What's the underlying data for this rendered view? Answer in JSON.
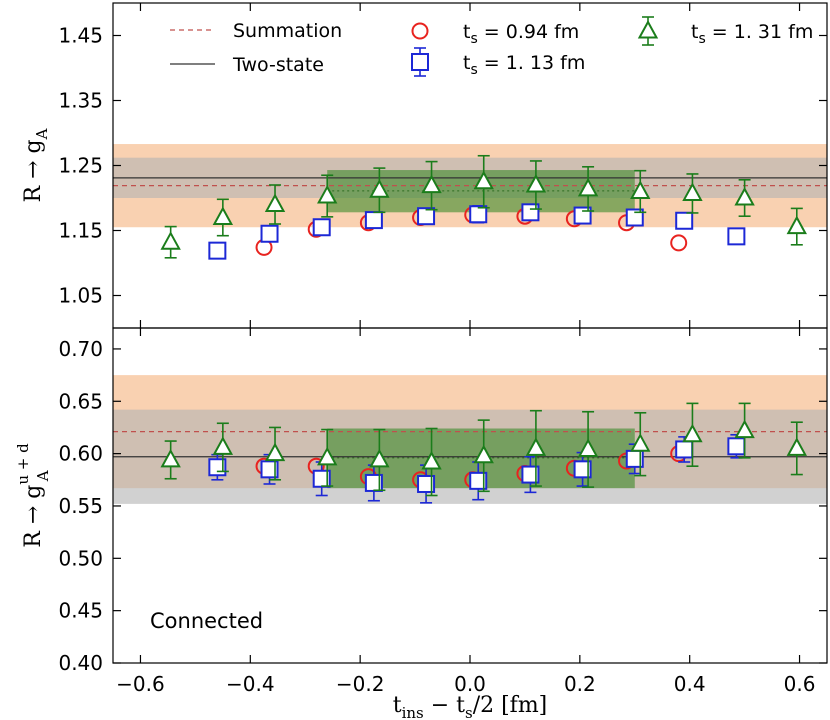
{
  "chart_data": [
    {
      "type": "scatter",
      "panel": "top",
      "ylabel": {
        "text": "R → g",
        "sub": "A",
        "sup": ""
      },
      "xlim": [
        -0.65,
        0.65
      ],
      "ylim": [
        1.0,
        1.5
      ],
      "yticks": [
        1.05,
        1.15,
        1.25,
        1.35,
        1.45
      ],
      "ytick_labels": [
        "1.05",
        "1.15",
        "1.25",
        "1.35",
        "1.45"
      ],
      "bands": [
        {
          "name": "Summation",
          "center": 1.219,
          "lower": 1.155,
          "upper": 1.283,
          "color": "#f7c197",
          "line_color": "#c0504d",
          "line_style": "dashed"
        },
        {
          "name": "Two-state",
          "center": 1.231,
          "lower": 1.2,
          "upper": 1.262,
          "color": "#b3b3b3",
          "line_color": "#333333",
          "line_style": "solid"
        }
      ],
      "fit_region": {
        "x": [
          -0.26,
          0.3
        ],
        "lower": 1.178,
        "upper": 1.243,
        "center": 1.211,
        "color": "#3a8a2a"
      },
      "series": [
        {
          "name": "ts = 0.94 fm",
          "marker": "circle",
          "color": "#e8231f",
          "x": [
            -0.375,
            -0.28,
            -0.185,
            -0.09,
            0.005,
            0.1,
            0.19,
            0.285,
            0.38
          ],
          "y": [
            1.124,
            1.152,
            1.162,
            1.17,
            1.174,
            1.172,
            1.168,
            1.162,
            1.131
          ],
          "err": [
            0.005,
            0.005,
            0.005,
            0.006,
            0.006,
            0.006,
            0.006,
            0.006,
            0.005
          ]
        },
        {
          "name": "ts = 1. 13 fm",
          "marker": "square",
          "color": "#1c28d6",
          "x": [
            -0.46,
            -0.365,
            -0.27,
            -0.175,
            -0.08,
            0.015,
            0.11,
            0.205,
            0.3,
            0.39,
            0.485
          ],
          "y": [
            1.119,
            1.145,
            1.155,
            1.166,
            1.172,
            1.175,
            1.178,
            1.173,
            1.17,
            1.165,
            1.141
          ],
          "err": [
            0.007,
            0.009,
            0.01,
            0.011,
            0.012,
            0.013,
            0.012,
            0.012,
            0.011,
            0.01,
            0.008
          ]
        },
        {
          "name": "ts = 1. 31 fm",
          "marker": "triangle",
          "color": "#1b7d1b",
          "x": [
            -0.545,
            -0.45,
            -0.355,
            -0.26,
            -0.165,
            -0.07,
            0.025,
            0.12,
            0.215,
            0.31,
            0.405,
            0.5,
            0.595
          ],
          "y": [
            1.132,
            1.17,
            1.19,
            1.203,
            1.212,
            1.219,
            1.225,
            1.22,
            1.214,
            1.21,
            1.207,
            1.2,
            1.156
          ],
          "err": [
            0.024,
            0.028,
            0.03,
            0.032,
            0.034,
            0.037,
            0.04,
            0.037,
            0.034,
            0.032,
            0.03,
            0.028,
            0.028
          ]
        }
      ],
      "legend": [
        {
          "label": "Summation",
          "kind": "line",
          "style": "dashed",
          "color": "#c0504d"
        },
        {
          "label": "Two-state",
          "kind": "line",
          "style": "solid",
          "color": "#333333"
        },
        {
          "label": "ts = 0.94 fm",
          "kind": "marker",
          "series": 0
        },
        {
          "label": "ts = 1. 13 fm",
          "kind": "marker",
          "series": 1
        },
        {
          "label": "ts = 1. 31 fm",
          "kind": "marker",
          "series": 2
        }
      ],
      "legend_labels": {
        "summation": "Summation",
        "two_state": "Two-state",
        "ts094": "0.94 fm",
        "ts113": "1. 13 fm",
        "ts131": "1. 31 fm",
        "ts_prefix": "t",
        "ts_sub": "s",
        "eq": " = "
      }
    },
    {
      "type": "scatter",
      "panel": "bottom",
      "ylabel": {
        "text": "R → g",
        "sub": "A",
        "sup": "u + d"
      },
      "xlim": [
        -0.65,
        0.65
      ],
      "ylim": [
        0.4,
        0.72
      ],
      "yticks": [
        0.4,
        0.45,
        0.5,
        0.55,
        0.6,
        0.65,
        0.7
      ],
      "ytick_labels": [
        "0.40",
        "0.45",
        "0.50",
        "0.55",
        "0.60",
        "0.65",
        "0.70"
      ],
      "xticks": [
        -0.6,
        -0.4,
        -0.2,
        0.0,
        0.2,
        0.4,
        0.6
      ],
      "xtick_labels": [
        "−0.6",
        "−0.4",
        "−0.2",
        "0.0",
        "0.2",
        "0.4",
        "0.6"
      ],
      "xlabel": {
        "t": "t",
        "sub1": "ins",
        "mid": " − t",
        "sub2": "s",
        "end": "/2 [fm]"
      },
      "annotation": "Connected",
      "bands": [
        {
          "name": "Summation",
          "center": 0.621,
          "lower": 0.567,
          "upper": 0.675,
          "color": "#f7c197",
          "line_color": "#c0504d",
          "line_style": "dashed"
        },
        {
          "name": "Two-state",
          "center": 0.597,
          "lower": 0.552,
          "upper": 0.642,
          "color": "#b3b3b3",
          "line_color": "#333333",
          "line_style": "solid"
        }
      ],
      "fit_region": {
        "x": [
          -0.26,
          0.3
        ],
        "lower": 0.567,
        "upper": 0.624,
        "center": 0.596,
        "color": "#3a8a2a"
      },
      "series": [
        {
          "name": "ts = 0.94 fm",
          "marker": "circle",
          "color": "#e8231f",
          "x": [
            -0.375,
            -0.28,
            -0.185,
            -0.09,
            0.005,
            0.1,
            0.19,
            0.285,
            0.38
          ],
          "y": [
            0.588,
            0.588,
            0.578,
            0.575,
            0.575,
            0.581,
            0.586,
            0.593,
            0.6
          ],
          "err": [
            0.003,
            0.003,
            0.003,
            0.003,
            0.003,
            0.003,
            0.003,
            0.003,
            0.003
          ]
        },
        {
          "name": "ts = 1. 13 fm",
          "marker": "square",
          "color": "#1c28d6",
          "x": [
            -0.46,
            -0.365,
            -0.27,
            -0.175,
            -0.08,
            0.015,
            0.11,
            0.205,
            0.3,
            0.39,
            0.485
          ],
          "y": [
            0.587,
            0.585,
            0.576,
            0.572,
            0.571,
            0.574,
            0.58,
            0.585,
            0.595,
            0.604,
            0.607
          ],
          "err": [
            0.012,
            0.014,
            0.016,
            0.017,
            0.018,
            0.018,
            0.017,
            0.016,
            0.014,
            0.012,
            0.011
          ]
        },
        {
          "name": "ts = 1. 31 fm",
          "marker": "triangle",
          "color": "#1b7d1b",
          "x": [
            -0.545,
            -0.45,
            -0.355,
            -0.26,
            -0.165,
            -0.07,
            0.025,
            0.12,
            0.215,
            0.31,
            0.405,
            0.5,
            0.595
          ],
          "y": [
            0.594,
            0.606,
            0.6,
            0.596,
            0.594,
            0.592,
            0.598,
            0.605,
            0.604,
            0.609,
            0.618,
            0.622,
            0.605
          ],
          "err": [
            0.018,
            0.023,
            0.025,
            0.027,
            0.029,
            0.032,
            0.034,
            0.036,
            0.036,
            0.03,
            0.03,
            0.026,
            0.025
          ]
        }
      ]
    }
  ]
}
